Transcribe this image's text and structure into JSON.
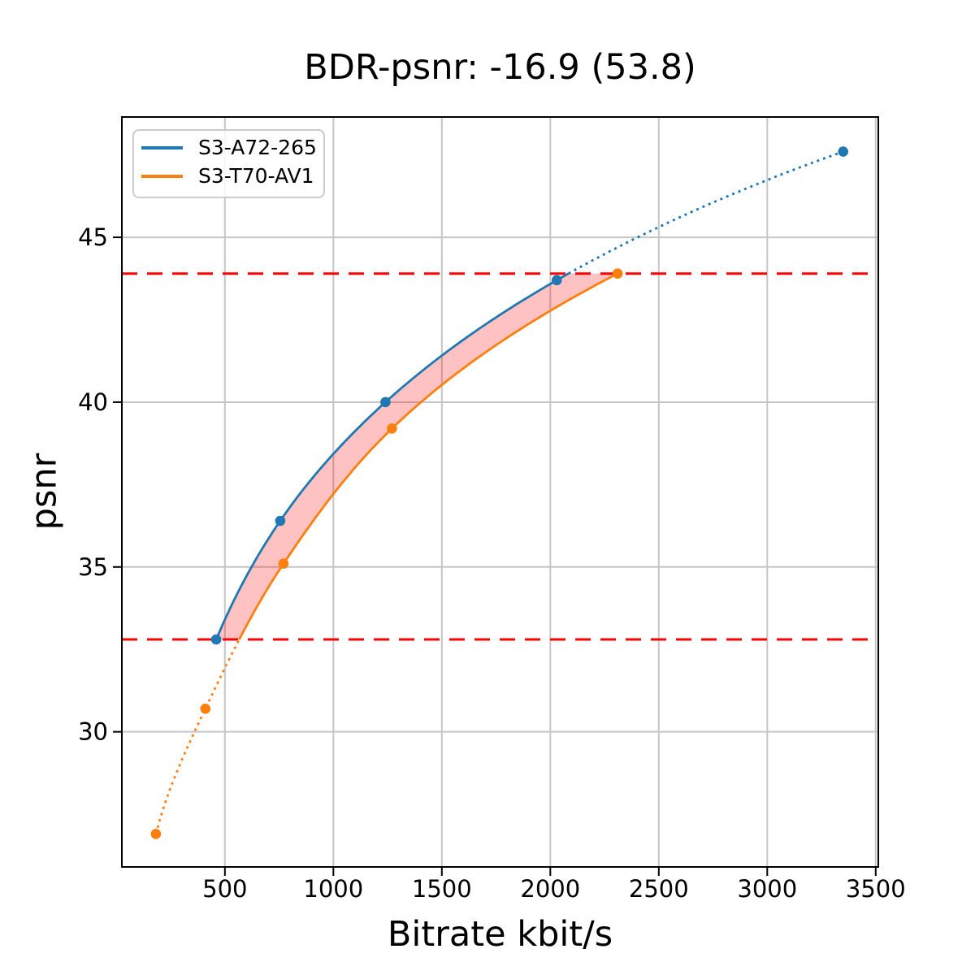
{
  "chart_data": {
    "type": "line",
    "title": "BDR-psnr: -16.9 (53.8)",
    "xlabel": "Bitrate kbit/s",
    "ylabel": "psnr",
    "bdr_value": "-16.9",
    "bdr_secondary_value": "53.8",
    "xlim": [
      25,
      3512
    ],
    "ylim": [
      25.9,
      48.65
    ],
    "xticks": [
      500,
      1000,
      1500,
      2000,
      2500,
      3000,
      3500
    ],
    "yticks": [
      30,
      35,
      40,
      45
    ],
    "grid": true,
    "legend_position": "upper-left",
    "interpolation": "pchip-log-x",
    "series": [
      {
        "name": "S3-A72-265",
        "color": "#1f77b4",
        "x": [
          460,
          755,
          1240,
          2030,
          3350
        ],
        "y": [
          32.8,
          36.4,
          40.0,
          43.7,
          47.6
        ]
      },
      {
        "name": "S3-T70-AV1",
        "color": "#ff7f0e",
        "x": [
          182,
          410,
          770,
          1270,
          2310
        ],
        "y": [
          26.9,
          30.7,
          35.1,
          39.2,
          43.9
        ]
      }
    ],
    "hlines": {
      "values": [
        43.9,
        32.8
      ],
      "color": "#ff0000",
      "style": "dashed",
      "note": "overlap bounds for BD-rate integration"
    },
    "overlap_fill": {
      "color": "#ff0000",
      "opacity": 0.24
    }
  },
  "style": {
    "grid_color": "#c6c6c6",
    "spine_color": "#000000",
    "tick_label_color": "#000000"
  }
}
